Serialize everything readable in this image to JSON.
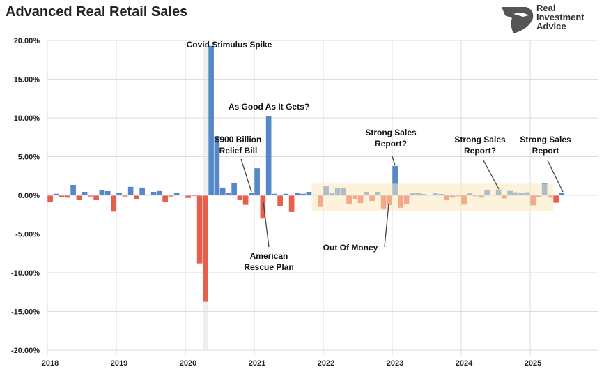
{
  "title": "Advanced Real Retail Sales",
  "logo": {
    "text": [
      "Real",
      "Investment",
      "Advice"
    ]
  },
  "colors": {
    "positive": "#5588C8",
    "negative": "#E85E4D",
    "highlight": "#FCE9C0",
    "covid_band": "#EFEFEF",
    "grid": "#DDDDDD"
  },
  "chart_data": {
    "type": "bar",
    "title": "Advanced Real Retail Sales",
    "xlabel": "",
    "ylabel": "",
    "ylim": [
      -20,
      20
    ],
    "y_ticks": [
      "20.00%",
      "15.00%",
      "10.00%",
      "5.00%",
      "0.00%",
      "-5.00%",
      "-10.00%",
      "-15.00%",
      "-20.00%"
    ],
    "x_ticks": [
      "2018",
      "2019",
      "2020",
      "2021",
      "2022",
      "2023",
      "2024",
      "2025"
    ],
    "grid": true,
    "legend": "none",
    "start_month": "2018-01",
    "values": [
      -0.9,
      0.2,
      -0.2,
      -0.3,
      1.35,
      -0.55,
      0.45,
      -0.15,
      -0.6,
      0.7,
      0.55,
      -2.1,
      0.3,
      -0.15,
      1.1,
      -0.45,
      1.0,
      0.1,
      0.45,
      0.55,
      -0.9,
      -0.15,
      0.35,
      0.05,
      -0.33,
      -0.1,
      -8.8,
      -13.75,
      19.3,
      7.65,
      1.0,
      0.36,
      1.6,
      -0.6,
      -1.23,
      0.36,
      3.5,
      -3.0,
      10.2,
      0.2,
      -1.35,
      0.2,
      -2.15,
      0.27,
      0.2,
      0.45,
      0.1,
      -1.5,
      1.17,
      0.27,
      0.9,
      1.0,
      -1.08,
      -0.45,
      -1.0,
      0.45,
      -0.72,
      0.45,
      -1.7,
      -1.26,
      3.8,
      -1.6,
      -1.17,
      0.36,
      0.27,
      0.18,
      0.05,
      0.36,
      0.18,
      -0.57,
      -0.3,
      -0.12,
      -1.2,
      0.3,
      -0.12,
      -0.3,
      0.66,
      0.05,
      0.75,
      -0.4,
      0.57,
      0.39,
      0.3,
      0.39,
      -1.3,
      -0.2,
      1.56,
      -0.3,
      -0.96,
      0.3
    ],
    "shaded_period": {
      "label": "Covid",
      "month": "2020-04"
    },
    "highlight_range": {
      "from": "2021-11",
      "to": "2025-04",
      "ymin": -2,
      "ymax": 1.5
    },
    "annotations": [
      {
        "text": [
          "Covid Stimulus Spike"
        ],
        "month": "2020-05"
      },
      {
        "text": [
          "As Good As It Gets?"
        ],
        "month": "2021-03"
      },
      {
        "text": [
          "$900 Billion",
          "Relief Bill"
        ],
        "month": "2020-12"
      },
      {
        "text": [
          "American",
          "Rescue Plan"
        ],
        "month": "2021-02"
      },
      {
        "text": [
          "Strong Sales",
          "Report?"
        ],
        "month": "2023-01"
      },
      {
        "text": [
          "Out Of Money"
        ],
        "month": "2022-12"
      },
      {
        "text": [
          "Strong Sales",
          "Report?"
        ],
        "month": "2024-07"
      },
      {
        "text": [
          "Strong Sales",
          "Report"
        ],
        "month": "2025-06"
      }
    ]
  }
}
